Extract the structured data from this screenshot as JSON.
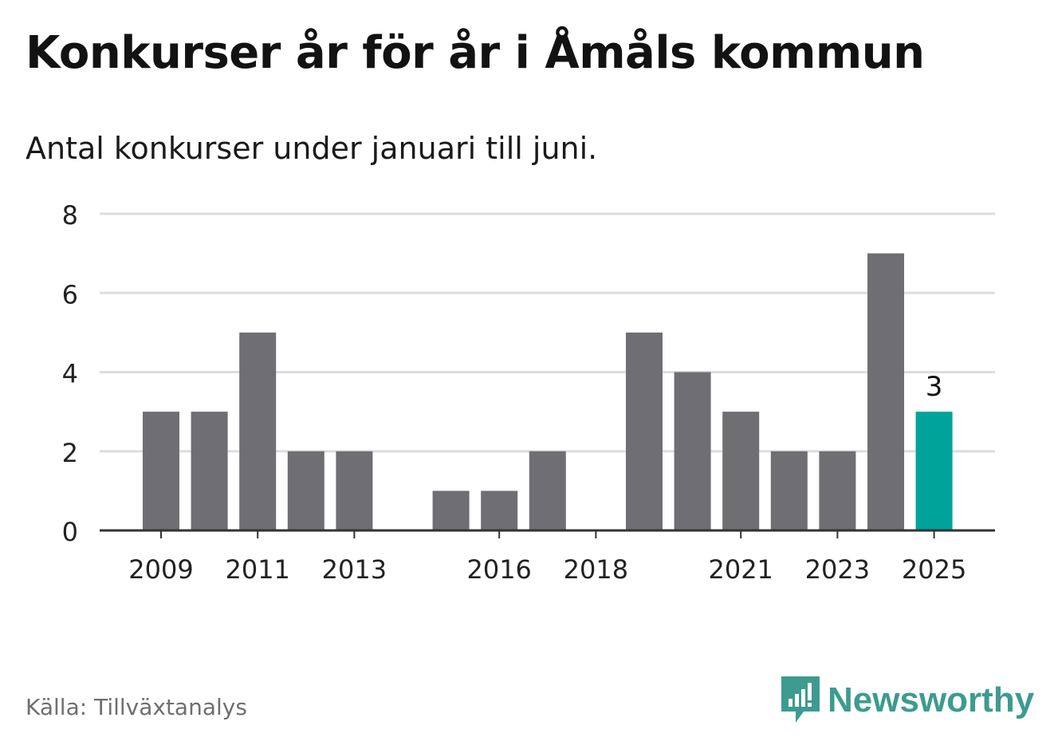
{
  "title": "Konkurser år för år i Åmåls kommun",
  "subtitle": "Antal konkurser under januari till juni.",
  "source": "Källa: Tillväxtanalys",
  "brand": {
    "name": "Newsworthy",
    "icon": "newsworthy-logo-icon",
    "color": "#3d9b8f"
  },
  "colors": {
    "bar": "#6f6e73",
    "highlight": "#00a39a",
    "grid": "#dddddd",
    "axis": "#333333"
  },
  "chart_data": {
    "type": "bar",
    "categories": [
      "2009",
      "2010",
      "2011",
      "2012",
      "2013",
      "2014",
      "2015",
      "2016",
      "2017",
      "2018",
      "2019",
      "2020",
      "2021",
      "2022",
      "2023",
      "2024",
      "2025"
    ],
    "values": [
      3,
      3,
      5,
      2,
      2,
      0,
      1,
      1,
      2,
      0,
      5,
      4,
      3,
      2,
      2,
      7,
      3
    ],
    "x_tick_labels": [
      "2009",
      "2011",
      "2013",
      "2016",
      "2018",
      "2021",
      "2023",
      "2025"
    ],
    "y_ticks": [
      0,
      2,
      4,
      6,
      8
    ],
    "ylim": [
      0,
      8
    ],
    "highlight_category": "2025",
    "data_labels": [
      {
        "category": "2025",
        "value": "3"
      }
    ],
    "title": "Konkurser år för år i Åmåls kommun",
    "xlabel": "",
    "ylabel": "",
    "grid": true,
    "legend": "none"
  }
}
